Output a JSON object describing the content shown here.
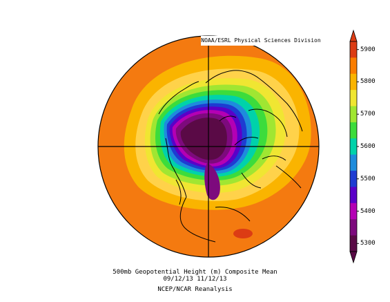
{
  "credit": "NOAA/ESRL Physical Sciences Division",
  "caption": {
    "line1": "500mb Geopotential Height (m) Composite Mean",
    "line2": "09/12/13 11/12/13",
    "line3": "NCEP/NCAR Reanalysis"
  },
  "colorbar": {
    "labels": [
      "5900",
      "5800",
      "5700",
      "5600",
      "5500",
      "5400",
      "5300"
    ],
    "stops": [
      {
        "value": 5300,
        "color": "#5a0a46"
      },
      {
        "value": 5350,
        "color": "#7d0a7d"
      },
      {
        "value": 5400,
        "color": "#b400b4"
      },
      {
        "value": 5450,
        "color": "#5a00c8"
      },
      {
        "value": 5500,
        "color": "#1e3cd2"
      },
      {
        "value": 5550,
        "color": "#1e8cdc"
      },
      {
        "value": 5600,
        "color": "#00d2aa"
      },
      {
        "value": 5650,
        "color": "#3cdc3c"
      },
      {
        "value": 5700,
        "color": "#a0e632"
      },
      {
        "value": 5750,
        "color": "#f0e632"
      },
      {
        "value": 5800,
        "color": "#fab400"
      },
      {
        "value": 5850,
        "color": "#fa7d00"
      },
      {
        "value": 5900,
        "color": "#dc3c14"
      }
    ]
  },
  "map": {
    "projection": "north-polar-stereographic",
    "background_color": "#f47a10"
  }
}
